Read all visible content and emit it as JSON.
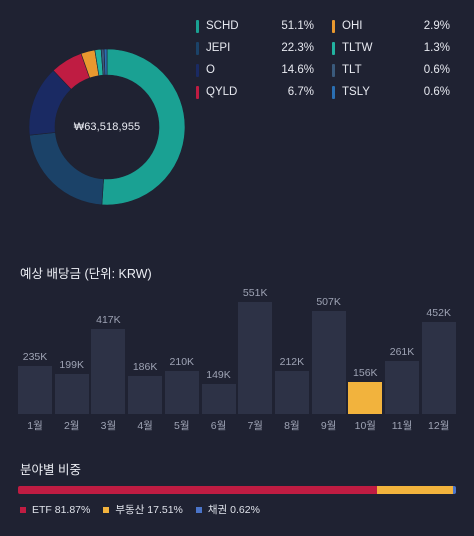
{
  "portfolio": {
    "total": "₩63,518,955",
    "holdings": [
      {
        "ticker": "SCHD",
        "pct_label": "51.1%",
        "pct": 51.1,
        "color": "#1aa193"
      },
      {
        "ticker": "JEPI",
        "pct_label": "22.3%",
        "pct": 22.3,
        "color": "#1b4268"
      },
      {
        "ticker": "O",
        "pct_label": "14.6%",
        "pct": 14.6,
        "color": "#1a2a63"
      },
      {
        "ticker": "QYLD",
        "pct_label": "6.7%",
        "pct": 6.7,
        "color": "#bf1c42"
      },
      {
        "ticker": "OHI",
        "pct_label": "2.9%",
        "pct": 2.9,
        "color": "#e8982f"
      },
      {
        "ticker": "TLTW",
        "pct_label": "1.3%",
        "pct": 1.3,
        "color": "#22b2a0"
      },
      {
        "ticker": "TLT",
        "pct_label": "0.6%",
        "pct": 0.6,
        "color": "#3a5a7c"
      },
      {
        "ticker": "TSLY",
        "pct_label": "0.6%",
        "pct": 0.6,
        "color": "#2a6fb3"
      }
    ]
  },
  "dividends": {
    "title": "예상 배당금 (단위: KRW)",
    "highlight_color": "#f2b33d",
    "chart_data": {
      "type": "bar",
      "categories": [
        "1월",
        "2월",
        "3월",
        "4월",
        "5월",
        "6월",
        "7월",
        "8월",
        "9월",
        "10월",
        "11월",
        "12월"
      ],
      "values": [
        235,
        199,
        417,
        186,
        210,
        149,
        551,
        212,
        507,
        156,
        261,
        452
      ],
      "value_labels": [
        "235K",
        "199K",
        "417K",
        "186K",
        "210K",
        "149K",
        "551K",
        "212K",
        "507K",
        "156K",
        "261K",
        "452K"
      ],
      "highlighted_index": 9
    }
  },
  "sectors": {
    "title": "분야별 비중",
    "items": [
      {
        "label": "ETF 81.87%",
        "pct": 81.87,
        "color": "#bf1c42"
      },
      {
        "label": "부동산 17.51%",
        "pct": 17.51,
        "color": "#f2b33d"
      },
      {
        "label": "채권 0.62%",
        "pct": 0.62,
        "color": "#4a74c9"
      }
    ]
  }
}
